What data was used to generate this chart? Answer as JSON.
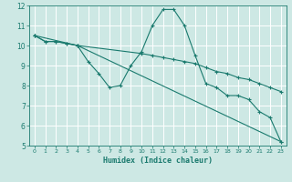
{
  "xlabel": "Humidex (Indice chaleur)",
  "background_color": "#cde8e4",
  "grid_color": "#ffffff",
  "line_color": "#1a7a6e",
  "xlim": [
    -0.5,
    23.5
  ],
  "ylim": [
    5,
    12
  ],
  "xticks": [
    0,
    1,
    2,
    3,
    4,
    5,
    6,
    7,
    8,
    9,
    10,
    11,
    12,
    13,
    14,
    15,
    16,
    17,
    18,
    19,
    20,
    21,
    22,
    23
  ],
  "yticks": [
    5,
    6,
    7,
    8,
    9,
    10,
    11,
    12
  ],
  "series": [
    {
      "x": [
        0,
        1,
        2,
        3,
        4,
        5,
        6,
        7,
        8,
        9,
        10,
        11,
        12,
        13,
        14,
        15,
        16,
        17,
        18,
        19,
        20,
        21,
        22,
        23
      ],
      "y": [
        10.5,
        10.2,
        10.2,
        10.1,
        10.0,
        9.2,
        8.6,
        7.9,
        8.0,
        9.0,
        9.7,
        11.0,
        11.8,
        11.8,
        11.0,
        9.5,
        8.1,
        7.9,
        7.5,
        7.5,
        7.3,
        6.7,
        6.4,
        5.2
      ]
    },
    {
      "x": [
        0,
        1,
        2,
        3,
        4,
        10,
        11,
        12,
        13,
        14,
        15,
        16,
        17,
        18,
        19,
        20,
        21,
        22,
        23
      ],
      "y": [
        10.5,
        10.2,
        10.2,
        10.1,
        10.0,
        9.6,
        9.5,
        9.4,
        9.3,
        9.2,
        9.1,
        8.9,
        8.7,
        8.6,
        8.4,
        8.3,
        8.1,
        7.9,
        7.7
      ]
    },
    {
      "x": [
        0,
        4,
        23
      ],
      "y": [
        10.5,
        10.0,
        5.2
      ]
    }
  ]
}
